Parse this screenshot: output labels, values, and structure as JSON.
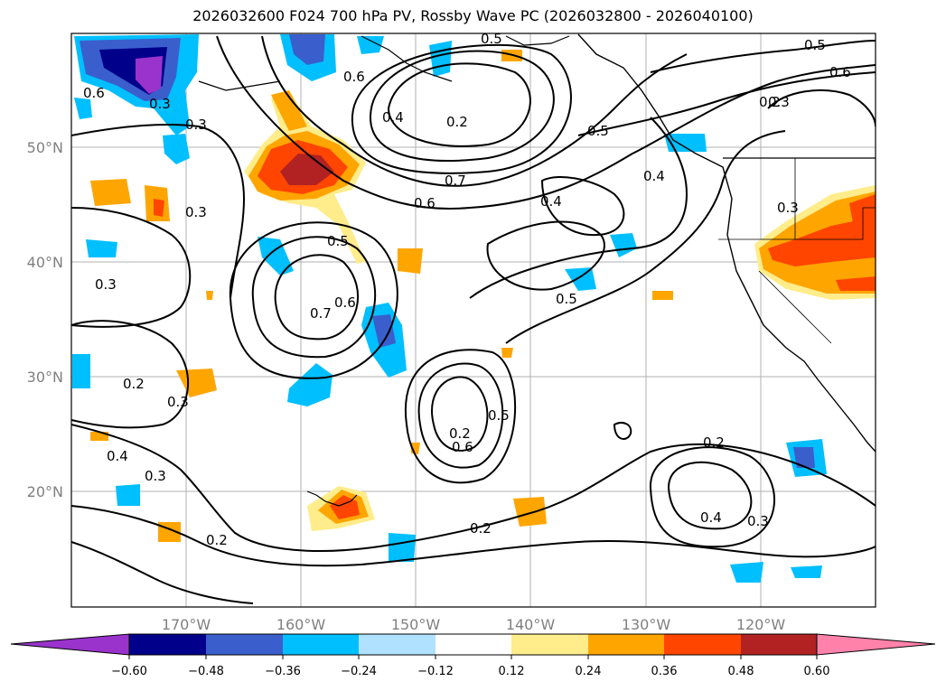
{
  "title": "2026032600 F024 700 hPa PV, Rossby Wave PC (2026032800 - 2026040100)",
  "lat_labels": [
    "50°N",
    "40°N",
    "30°N",
    "20°N"
  ],
  "lon_labels": [
    "170°W",
    "160°W",
    "150°W",
    "140°W",
    "130°W",
    "120°W"
  ],
  "contour_labels": [
    "0.3",
    "0.5",
    "0.6",
    "0.6",
    "0.2",
    "0.3",
    "0.4",
    "0.5",
    "0.3",
    "0.6",
    "0.2",
    "0.4",
    "0.5",
    "0.7",
    "0.6",
    "0.4",
    "0.3",
    "0.5",
    "0.6",
    "0.7",
    "0.3",
    "0.5",
    "0.2",
    "0.3",
    "0.3",
    "0.2",
    "0.4",
    "0.3",
    "0.6",
    "0.2",
    "0.5",
    "0.2",
    "0.2",
    "0.4",
    "0.3"
  ],
  "colorbar": {
    "tick_labels": [
      "−0.60",
      "−0.48",
      "−0.36",
      "−0.24",
      "−0.12",
      "0.12",
      "0.24",
      "0.36",
      "0.48",
      "0.60"
    ],
    "colors": [
      "#9933cc",
      "#00008b",
      "#3a5fcd",
      "#00bfff",
      "#b0e2ff",
      "#ffffff",
      "#ffec8b",
      "#ffa500",
      "#ff4500",
      "#b22222",
      "#ff82ab"
    ]
  }
}
